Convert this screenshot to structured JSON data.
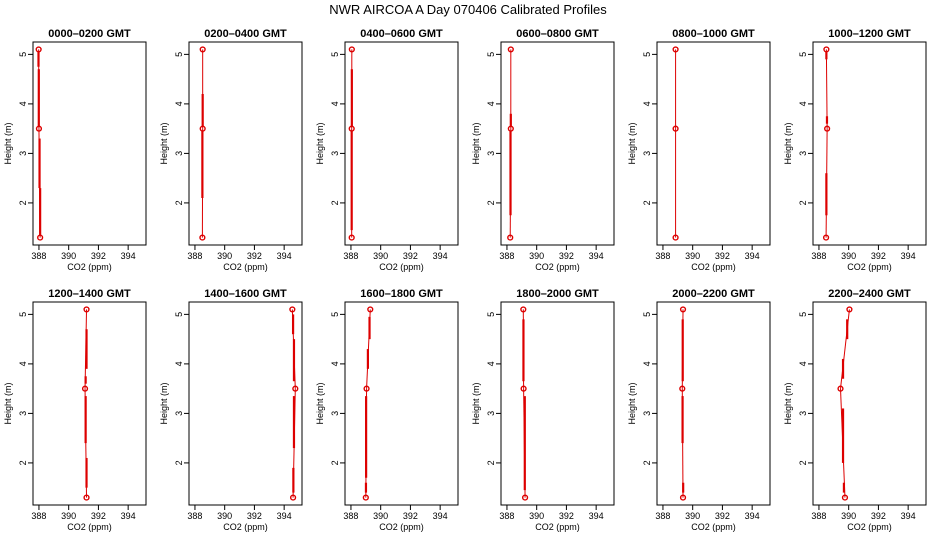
{
  "figure": {
    "title": "NWR AIRCOA A  Day 070406  Calibrated Profiles",
    "series_color": "#dd0000"
  },
  "chart_data": [
    {
      "type": "line",
      "title": "0000–0200 GMT",
      "xlabel": "CO2 (ppm)",
      "ylabel": "Height (m)",
      "xlim": [
        387.6,
        395.2
      ],
      "ylim": [
        1.15,
        5.25
      ],
      "xticks": [
        388,
        390,
        392,
        394
      ],
      "xtick_labels": [
        "388",
        "390",
        "392",
        "394"
      ],
      "yticks": [
        2,
        3,
        4,
        5
      ],
      "ytick_labels": [
        "2",
        "3",
        "4",
        "5"
      ],
      "heights": [
        1.3,
        3.5,
        5.1
      ],
      "co2": [
        388.08,
        388.0,
        387.98
      ],
      "range_bars": [
        [
          {
            "x": 388.08,
            "y0": 1.35,
            "y1": 2.3
          },
          {
            "x": 388.04,
            "y0": 2.3,
            "y1": 3.3
          }
        ],
        [
          {
            "x": 387.99,
            "y0": 3.55,
            "y1": 4.7
          },
          {
            "x": 387.97,
            "y0": 4.75,
            "y1": 5.05
          }
        ]
      ]
    },
    {
      "type": "line",
      "title": "0200–0400 GMT",
      "xlabel": "CO2 (ppm)",
      "ylabel": "Height (m)",
      "xlim": [
        387.6,
        395.2
      ],
      "ylim": [
        1.15,
        5.25
      ],
      "xticks": [
        388,
        390,
        392,
        394
      ],
      "xtick_labels": [
        "388",
        "390",
        "392",
        "394"
      ],
      "yticks": [
        2,
        3,
        4,
        5
      ],
      "ytick_labels": [
        "2",
        "3",
        "4",
        "5"
      ],
      "heights": [
        1.3,
        3.5,
        5.1
      ],
      "co2": [
        388.5,
        388.52,
        388.52
      ],
      "range_bars": [
        [
          {
            "x": 388.5,
            "y0": 2.1,
            "y1": 3.45
          }
        ],
        [
          {
            "x": 388.52,
            "y0": 3.55,
            "y1": 4.2
          }
        ]
      ]
    },
    {
      "type": "line",
      "title": "0400–0600 GMT",
      "xlabel": "CO2 (ppm)",
      "ylabel": "Height (m)",
      "xlim": [
        387.6,
        395.2
      ],
      "ylim": [
        1.15,
        5.25
      ],
      "xticks": [
        388,
        390,
        392,
        394
      ],
      "xtick_labels": [
        "388",
        "390",
        "392",
        "394"
      ],
      "yticks": [
        2,
        3,
        4,
        5
      ],
      "ytick_labels": [
        "2",
        "3",
        "4",
        "5"
      ],
      "heights": [
        1.3,
        3.5,
        5.1
      ],
      "co2": [
        388.05,
        388.05,
        388.06
      ],
      "range_bars": [
        [
          {
            "x": 388.05,
            "y0": 1.45,
            "y1": 3.45
          }
        ],
        [
          {
            "x": 388.06,
            "y0": 3.55,
            "y1": 4.7
          }
        ]
      ]
    },
    {
      "type": "line",
      "title": "0600–0800 GMT",
      "xlabel": "CO2 (ppm)",
      "ylabel": "Height (m)",
      "xlim": [
        387.6,
        395.2
      ],
      "ylim": [
        1.15,
        5.25
      ],
      "xticks": [
        388,
        390,
        392,
        394
      ],
      "xtick_labels": [
        "388",
        "390",
        "392",
        "394"
      ],
      "yticks": [
        2,
        3,
        4,
        5
      ],
      "ytick_labels": [
        "2",
        "3",
        "4",
        "5"
      ],
      "heights": [
        1.3,
        3.5,
        5.1
      ],
      "co2": [
        388.22,
        388.26,
        388.26
      ],
      "range_bars": [
        [
          {
            "x": 388.24,
            "y0": 1.75,
            "y1": 3.45
          }
        ],
        [
          {
            "x": 388.26,
            "y0": 3.55,
            "y1": 3.8
          }
        ]
      ]
    },
    {
      "type": "line",
      "title": "0800–1000 GMT",
      "xlabel": "CO2 (ppm)",
      "ylabel": "Height (m)",
      "xlim": [
        387.6,
        395.2
      ],
      "ylim": [
        1.15,
        5.25
      ],
      "xticks": [
        388,
        390,
        392,
        394
      ],
      "xtick_labels": [
        "388",
        "390",
        "392",
        "394"
      ],
      "yticks": [
        2,
        3,
        4,
        5
      ],
      "ytick_labels": [
        "2",
        "3",
        "4",
        "5"
      ],
      "heights": [
        1.3,
        3.5,
        5.1
      ],
      "co2": [
        388.85,
        388.85,
        388.85
      ],
      "range_bars": [
        [],
        []
      ]
    },
    {
      "type": "line",
      "title": "1000–1200 GMT",
      "xlabel": "CO2 (ppm)",
      "ylabel": "Height (m)",
      "xlim": [
        387.6,
        395.2
      ],
      "ylim": [
        1.15,
        5.25
      ],
      "xticks": [
        388,
        390,
        392,
        394
      ],
      "xtick_labels": [
        "388",
        "390",
        "392",
        "394"
      ],
      "yticks": [
        2,
        3,
        4,
        5
      ],
      "ytick_labels": [
        "2",
        "3",
        "4",
        "5"
      ],
      "heights": [
        1.3,
        3.5,
        5.1
      ],
      "co2": [
        388.48,
        388.55,
        388.5
      ],
      "range_bars": [
        [
          {
            "x": 388.5,
            "y0": 1.75,
            "y1": 2.6
          }
        ],
        [
          {
            "x": 388.54,
            "y0": 3.6,
            "y1": 3.75
          },
          {
            "x": 388.5,
            "y0": 4.9,
            "y1": 5.05
          }
        ]
      ]
    },
    {
      "type": "line",
      "title": "1200–1400 GMT",
      "xlabel": "CO2 (ppm)",
      "ylabel": "Height (m)",
      "xlim": [
        387.6,
        395.2
      ],
      "ylim": [
        1.15,
        5.25
      ],
      "xticks": [
        388,
        390,
        392,
        394
      ],
      "xtick_labels": [
        "388",
        "390",
        "392",
        "394"
      ],
      "yticks": [
        2,
        3,
        4,
        5
      ],
      "ytick_labels": [
        "2",
        "3",
        "4",
        "5"
      ],
      "heights": [
        1.3,
        3.5,
        5.1
      ],
      "co2": [
        391.2,
        391.1,
        391.2
      ],
      "range_bars": [
        [
          {
            "x": 391.2,
            "y0": 1.5,
            "y1": 2.1
          },
          {
            "x": 391.14,
            "y0": 2.4,
            "y1": 3.35
          }
        ],
        [
          {
            "x": 391.14,
            "y0": 3.6,
            "y1": 3.75
          },
          {
            "x": 391.2,
            "y0": 3.9,
            "y1": 4.7
          }
        ]
      ]
    },
    {
      "type": "line",
      "title": "1400–1600 GMT",
      "xlabel": "CO2 (ppm)",
      "ylabel": "Height (m)",
      "xlim": [
        387.6,
        395.2
      ],
      "ylim": [
        1.15,
        5.25
      ],
      "xticks": [
        388,
        390,
        392,
        394
      ],
      "xtick_labels": [
        "388",
        "390",
        "392",
        "394"
      ],
      "yticks": [
        2,
        3,
        4,
        5
      ],
      "ytick_labels": [
        "2",
        "3",
        "4",
        "5"
      ],
      "heights": [
        1.3,
        3.5,
        5.1
      ],
      "co2": [
        394.6,
        394.75,
        394.55
      ],
      "range_bars": [
        [
          {
            "x": 394.62,
            "y0": 1.4,
            "y1": 1.9
          },
          {
            "x": 394.66,
            "y0": 2.3,
            "y1": 3.35
          }
        ],
        [
          {
            "x": 394.66,
            "y0": 3.65,
            "y1": 4.5
          },
          {
            "x": 394.6,
            "y0": 4.6,
            "y1": 5.0
          }
        ]
      ]
    },
    {
      "type": "line",
      "title": "1600–1800 GMT",
      "xlabel": "CO2 (ppm)",
      "ylabel": "Height (m)",
      "xlim": [
        387.6,
        395.2
      ],
      "ylim": [
        1.15,
        5.25
      ],
      "xticks": [
        388,
        390,
        392,
        394
      ],
      "xtick_labels": [
        "388",
        "390",
        "392",
        "394"
      ],
      "yticks": [
        2,
        3,
        4,
        5
      ],
      "ytick_labels": [
        "2",
        "3",
        "4",
        "5"
      ],
      "heights": [
        1.3,
        3.5,
        5.1
      ],
      "co2": [
        389.0,
        389.05,
        389.3
      ],
      "range_bars": [
        [
          {
            "x": 389.01,
            "y0": 1.4,
            "y1": 1.6
          },
          {
            "x": 389.02,
            "y0": 1.7,
            "y1": 3.35
          }
        ],
        [
          {
            "x": 389.14,
            "y0": 3.9,
            "y1": 4.3
          },
          {
            "x": 389.25,
            "y0": 4.5,
            "y1": 4.95
          }
        ]
      ]
    },
    {
      "type": "line",
      "title": "1800–2000 GMT",
      "xlabel": "CO2 (ppm)",
      "ylabel": "Height (m)",
      "xlim": [
        387.6,
        395.2
      ],
      "ylim": [
        1.15,
        5.25
      ],
      "xticks": [
        388,
        390,
        392,
        394
      ],
      "xtick_labels": [
        "388",
        "390",
        "392",
        "394"
      ],
      "yticks": [
        2,
        3,
        4,
        5
      ],
      "ytick_labels": [
        "2",
        "3",
        "4",
        "5"
      ],
      "heights": [
        1.3,
        3.5,
        5.1
      ],
      "co2": [
        389.22,
        389.12,
        389.1
      ],
      "range_bars": [
        [
          {
            "x": 389.2,
            "y0": 1.45,
            "y1": 3.35
          }
        ],
        [
          {
            "x": 389.11,
            "y0": 3.65,
            "y1": 4.9
          }
        ]
      ]
    },
    {
      "type": "line",
      "title": "2000–2200 GMT",
      "xlabel": "CO2 (ppm)",
      "ylabel": "Height (m)",
      "xlim": [
        387.6,
        395.2
      ],
      "ylim": [
        1.15,
        5.25
      ],
      "xticks": [
        388,
        390,
        392,
        394
      ],
      "xtick_labels": [
        "388",
        "390",
        "392",
        "394"
      ],
      "yticks": [
        2,
        3,
        4,
        5
      ],
      "ytick_labels": [
        "2",
        "3",
        "4",
        "5"
      ],
      "heights": [
        1.3,
        3.5,
        5.1
      ],
      "co2": [
        389.35,
        389.3,
        389.35
      ],
      "range_bars": [
        [
          {
            "x": 389.36,
            "y0": 1.4,
            "y1": 1.6
          },
          {
            "x": 389.32,
            "y0": 2.4,
            "y1": 3.35
          }
        ],
        [
          {
            "x": 389.33,
            "y0": 3.65,
            "y1": 4.9
          }
        ]
      ]
    },
    {
      "type": "line",
      "title": "2200–2400 GMT",
      "xlabel": "CO2 (ppm)",
      "ylabel": "Height (m)",
      "xlim": [
        387.6,
        395.2
      ],
      "ylim": [
        1.15,
        5.25
      ],
      "xticks": [
        388,
        390,
        392,
        394
      ],
      "xtick_labels": [
        "388",
        "390",
        "392",
        "394"
      ],
      "yticks": [
        2,
        3,
        4,
        5
      ],
      "ytick_labels": [
        "2",
        "3",
        "4",
        "5"
      ],
      "heights": [
        1.3,
        3.5,
        5.1
      ],
      "co2": [
        389.75,
        389.45,
        390.05
      ],
      "range_bars": [
        [
          {
            "x": 389.68,
            "y0": 1.4,
            "y1": 1.6
          },
          {
            "x": 389.62,
            "y0": 2.0,
            "y1": 3.1
          }
        ],
        [
          {
            "x": 389.62,
            "y0": 3.7,
            "y1": 4.1
          },
          {
            "x": 389.9,
            "y0": 4.5,
            "y1": 4.9
          }
        ]
      ]
    }
  ]
}
